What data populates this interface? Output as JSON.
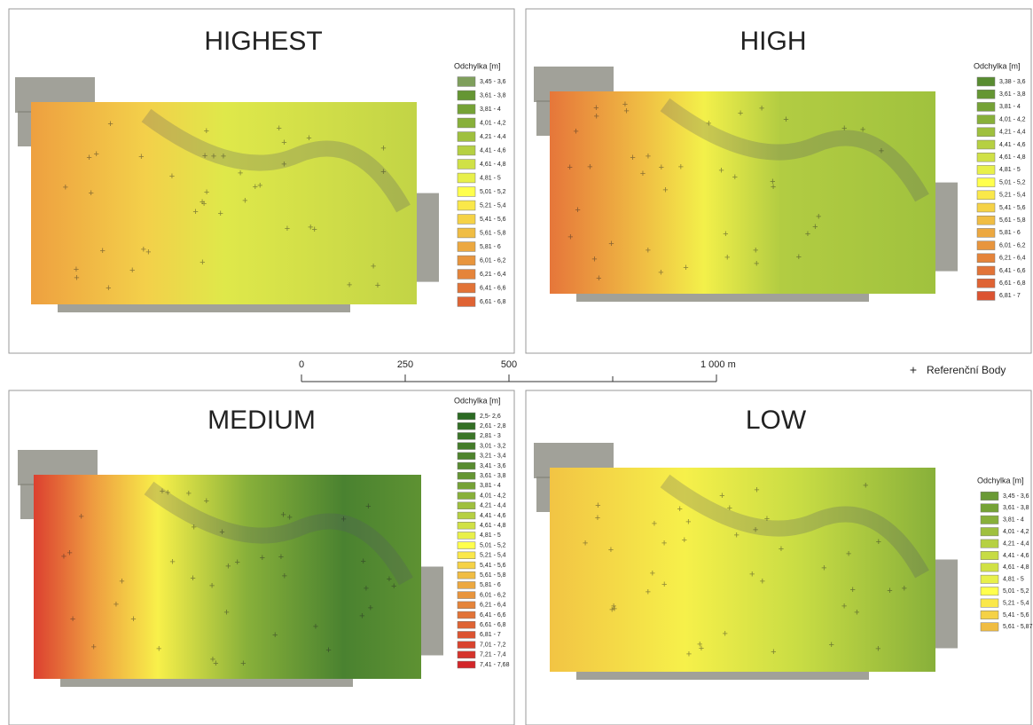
{
  "panels": [
    {
      "title": "HIGHEST",
      "legend": {
        "title": "Odchylka [m]",
        "classes": [
          {
            "label": "3,45 - 3,6",
            "color": "#7f9f5c"
          },
          {
            "label": "3,61 - 3,8",
            "color": "#659633"
          },
          {
            "label": "3,81 - 4",
            "color": "#75a236"
          },
          {
            "label": "4,01 - 4,2",
            "color": "#88b03a"
          },
          {
            "label": "4,21 - 4,4",
            "color": "#9fc03e"
          },
          {
            "label": "4,41 - 4,6",
            "color": "#b6d042"
          },
          {
            "label": "4,61 - 4,8",
            "color": "#d0e146"
          },
          {
            "label": "4,81 - 5",
            "color": "#e8f04a"
          },
          {
            "label": "5,01 - 5,2",
            "color": "#ffff4d"
          },
          {
            "label": "5,21 - 5,4",
            "color": "#fae84a"
          },
          {
            "label": "5,41 - 5,6",
            "color": "#f5d246"
          },
          {
            "label": "5,61 - 5,8",
            "color": "#f0bd43"
          },
          {
            "label": "5,81 - 6",
            "color": "#eca840"
          },
          {
            "label": "6,01 - 6,2",
            "color": "#e8953d"
          },
          {
            "label": "6,21 - 6,4",
            "color": "#e5843a"
          },
          {
            "label": "6,41 - 6,6",
            "color": "#e27337"
          },
          {
            "label": "6,61 - 6,8",
            "color": "#df6334"
          }
        ]
      }
    },
    {
      "title": "HIGH",
      "legend": {
        "title": "Odchylka [m]",
        "classes": [
          {
            "label": "3,38 - 3,6",
            "color": "#588c30"
          },
          {
            "label": "3,61 - 3,8",
            "color": "#659633"
          },
          {
            "label": "3,81 - 4",
            "color": "#75a236"
          },
          {
            "label": "4,01 - 4,2",
            "color": "#88b03a"
          },
          {
            "label": "4,21 - 4,4",
            "color": "#9fc03e"
          },
          {
            "label": "4,41 - 4,6",
            "color": "#b6d042"
          },
          {
            "label": "4,61 - 4,8",
            "color": "#d0e146"
          },
          {
            "label": "4,81 - 5",
            "color": "#e8f04a"
          },
          {
            "label": "5,01 - 5,2",
            "color": "#ffff4d"
          },
          {
            "label": "5,21 - 5,4",
            "color": "#fae84a"
          },
          {
            "label": "5,41 - 5,6",
            "color": "#f5d246"
          },
          {
            "label": "5,61 - 5,8",
            "color": "#f0bd43"
          },
          {
            "label": "5,81 - 6",
            "color": "#eca840"
          },
          {
            "label": "6,01 - 6,2",
            "color": "#e8953d"
          },
          {
            "label": "6,21 - 6,4",
            "color": "#e5843a"
          },
          {
            "label": "6,41 - 6,6",
            "color": "#e27337"
          },
          {
            "label": "6,61 - 6,8",
            "color": "#df6334"
          },
          {
            "label": "6,81 - 7",
            "color": "#dc5331"
          }
        ]
      }
    },
    {
      "title": "MEDIUM",
      "legend": {
        "title": "Odchylka [m]",
        "classes": [
          {
            "label": "2,5- 2,6",
            "color": "#2b6a22"
          },
          {
            "label": "2,61 - 2,8",
            "color": "#336f25"
          },
          {
            "label": "2,81 - 3",
            "color": "#3b7528"
          },
          {
            "label": "3,01 - 3,2",
            "color": "#447c2a"
          },
          {
            "label": "3,21 - 3,4",
            "color": "#4e842d"
          },
          {
            "label": "3,41 - 3,6",
            "color": "#588c30"
          },
          {
            "label": "3,61 - 3,8",
            "color": "#659633"
          },
          {
            "label": "3,81 - 4",
            "color": "#75a236"
          },
          {
            "label": "4,01 - 4,2",
            "color": "#88b03a"
          },
          {
            "label": "4,21 - 4,4",
            "color": "#9fc03e"
          },
          {
            "label": "4,41 - 4,6",
            "color": "#b6d042"
          },
          {
            "label": "4,61 - 4,8",
            "color": "#d0e146"
          },
          {
            "label": "4,81 - 5",
            "color": "#e8f04a"
          },
          {
            "label": "5,01 - 5,2",
            "color": "#ffff4d"
          },
          {
            "label": "5,21 - 5,4",
            "color": "#fae84a"
          },
          {
            "label": "5,41 - 5,6",
            "color": "#f5d246"
          },
          {
            "label": "5,61 - 5,8",
            "color": "#f0bd43"
          },
          {
            "label": "5,81 - 6",
            "color": "#eca840"
          },
          {
            "label": "6,01 - 6,2",
            "color": "#e8953d"
          },
          {
            "label": "6,21 - 6,4",
            "color": "#e5843a"
          },
          {
            "label": "6,41 - 6,6",
            "color": "#e27337"
          },
          {
            "label": "6,61 - 6,8",
            "color": "#df6334"
          },
          {
            "label": "6,81 - 7",
            "color": "#dc5331"
          },
          {
            "label": "7,01 - 7,2",
            "color": "#d9432e"
          },
          {
            "label": "7,21 - 7,4",
            "color": "#d6342b"
          },
          {
            "label": "7,41 - 7,68",
            "color": "#d32528"
          }
        ]
      }
    },
    {
      "title": "LOW",
      "legend": {
        "title": "Odchylka [m]",
        "classes": [
          {
            "label": "3,45 - 3,6",
            "color": "#6a9a35"
          },
          {
            "label": "3,61 - 3,8",
            "color": "#75a236"
          },
          {
            "label": "3,81 - 4",
            "color": "#88b03a"
          },
          {
            "label": "4,01 - 4,2",
            "color": "#9fc03e"
          },
          {
            "label": "4,21 - 4,4",
            "color": "#b6d042"
          },
          {
            "label": "4,41 - 4,6",
            "color": "#c7dc44"
          },
          {
            "label": "4,61 - 4,8",
            "color": "#d0e146"
          },
          {
            "label": "4,81 - 5",
            "color": "#e8f04a"
          },
          {
            "label": "5,01 - 5,2",
            "color": "#ffff4d"
          },
          {
            "label": "5,21 - 5,4",
            "color": "#fae84a"
          },
          {
            "label": "5,41 - 5,6",
            "color": "#f5d246"
          },
          {
            "label": "5,61 - 5,87",
            "color": "#f0bd43"
          }
        ]
      }
    }
  ],
  "scale_bar": {
    "ticks": [
      0,
      250,
      500,
      {
        "value": 1000,
        "label": "1 000 m"
      }
    ],
    "range": [
      0,
      1000
    ]
  },
  "reference_legend": "Referenční Body"
}
